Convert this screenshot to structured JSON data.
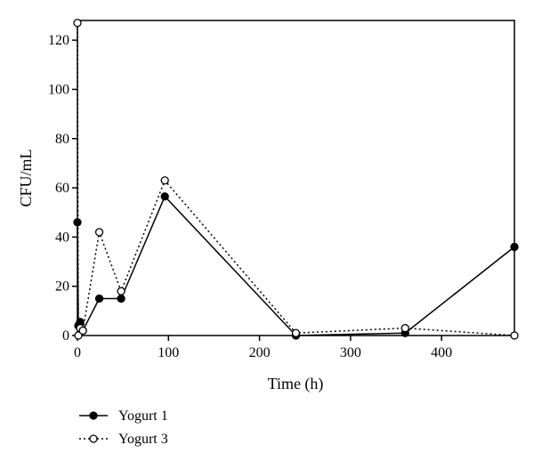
{
  "chart_data": {
    "type": "line",
    "title": "",
    "xlabel": "Time (h)",
    "ylabel": "CFU/mL",
    "xlim": [
      0,
      480
    ],
    "ylim": [
      0,
      128
    ],
    "xticks": [
      0,
      100,
      200,
      300,
      400
    ],
    "yticks": [
      0,
      20,
      40,
      60,
      80,
      100,
      120
    ],
    "grid": false,
    "legend_position": "bottom-left",
    "series": [
      {
        "name": "Yogurt 1",
        "marker": "filled-circle",
        "line_style": "solid",
        "color": "#000000",
        "x": [
          0,
          1,
          3,
          6,
          24,
          48,
          96,
          240,
          360,
          480
        ],
        "y": [
          46,
          4,
          5.5,
          2,
          15,
          15,
          56.5,
          0,
          1,
          36
        ]
      },
      {
        "name": "Yogurt 3",
        "marker": "open-circle",
        "line_style": "dotted",
        "color": "#000000",
        "x": [
          0,
          1,
          3,
          6,
          24,
          48,
          96,
          240,
          360,
          480
        ],
        "y": [
          127,
          0,
          3,
          2,
          42,
          18,
          63,
          1,
          3,
          0
        ]
      }
    ]
  }
}
